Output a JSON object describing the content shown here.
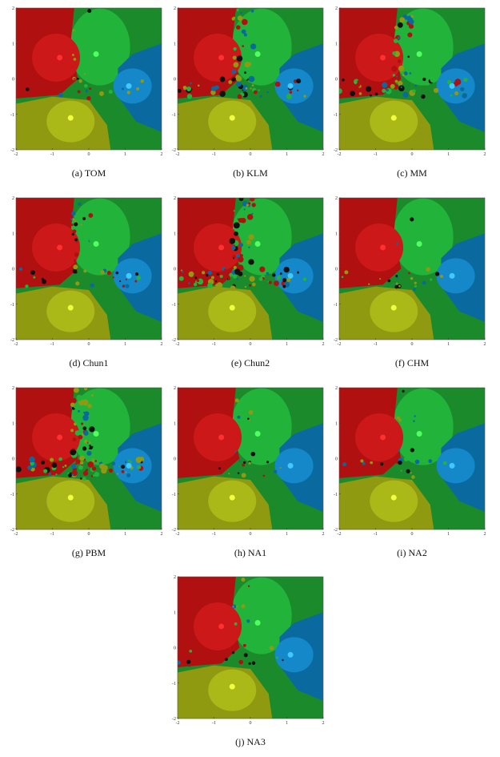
{
  "axes": {
    "xlim": [
      -2,
      2
    ],
    "ylim": [
      -2,
      2
    ],
    "xticks": [
      -2,
      -1,
      0,
      1,
      2
    ],
    "yticks": [
      -2,
      -1,
      0,
      1,
      2
    ]
  },
  "panels": [
    {
      "caption": "(a) TOM"
    },
    {
      "caption": "(b) KLM"
    },
    {
      "caption": "(c) MM"
    },
    {
      "caption": "(d) Chun1"
    },
    {
      "caption": "(e) Chun2"
    },
    {
      "caption": "(f) CHM"
    },
    {
      "caption": "(g) PBM"
    },
    {
      "caption": "(h) NA1"
    },
    {
      "caption": "(i) NA2"
    },
    {
      "caption": "(j) NA3"
    }
  ]
}
